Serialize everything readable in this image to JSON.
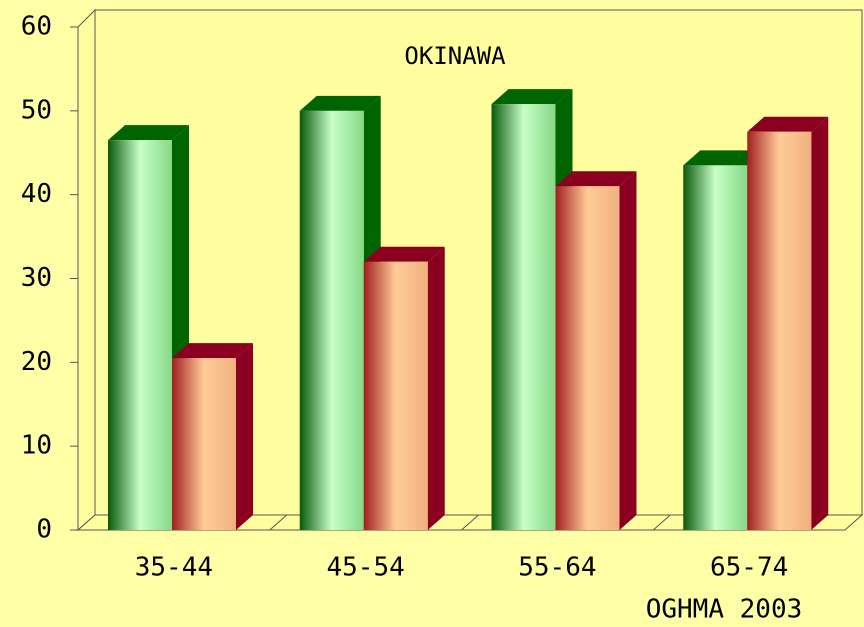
{
  "chart_data": {
    "type": "bar3d",
    "title": "OKINAWA",
    "footer": "OGHMA 2003",
    "categories": [
      "35-44",
      "45-54",
      "55-64",
      "65-74"
    ],
    "series": [
      {
        "color": "#006400",
        "values": [
          46.5,
          50,
          50.8,
          43.5
        ]
      },
      {
        "color": "#8b0020",
        "values": [
          20.5,
          32,
          41,
          47.5
        ]
      }
    ],
    "ylim": [
      0,
      60
    ],
    "yticks": [
      0,
      10,
      20,
      30,
      40,
      50,
      60
    ]
  }
}
